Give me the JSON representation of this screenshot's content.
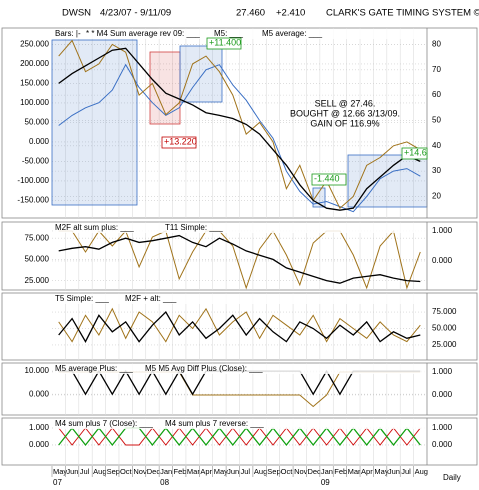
{
  "header": {
    "symbol": "DWSN",
    "range": "4/23/07 - 9/11/09",
    "last": "27.460",
    "change": "+2.410",
    "system": "CLARK'S GATE TIMING SYSTEM ©",
    "frequency": "Daily"
  },
  "chart_data": [
    {
      "type": "line",
      "grid": true,
      "legend_labels": [
        "Bars: |-",
        "* * M4 Sum average rev 09: ___",
        "M5: ___",
        "M5 average: ___"
      ],
      "annotations": [
        {
          "text": "+11.400",
          "color": "#1a9a1a"
        },
        {
          "text": "+13.220",
          "color": "#c00000"
        },
        {
          "text": "-1.440",
          "color": "#1a9a1a"
        },
        {
          "text": "+14.6",
          "color": "#1a9a1a"
        }
      ],
      "note": [
        "SELL @ 27.46.",
        "BOUGHT @ 12.66 3/13/09.",
        "GAIN OF 116.9%"
      ],
      "ylim": [
        -195,
        292
      ],
      "yticks": [
        {
          "value": 250,
          "label": "250.000"
        },
        {
          "value": 200,
          "label": "200.000"
        },
        {
          "value": 150,
          "label": "150.000"
        },
        {
          "value": 100,
          "label": "100.000"
        },
        {
          "value": 50,
          "label": "50.000"
        },
        {
          "value": 0,
          "label": "0.000"
        },
        {
          "value": -50,
          "label": "-50.000"
        },
        {
          "value": -100,
          "label": "-100.000"
        },
        {
          "value": -150,
          "label": "-150.000"
        }
      ],
      "y2lim": [
        11.5,
        86.5
      ],
      "y2ticks": [
        80,
        70,
        60,
        50,
        40,
        30,
        20
      ],
      "series": [
        {
          "color": "#3a6fc4",
          "axis": "y2",
          "values": [
            48,
            52,
            55,
            57,
            62,
            72,
            63,
            57,
            52,
            55,
            63,
            70,
            72,
            64,
            58,
            50,
            43,
            30,
            22,
            17,
            18,
            16,
            14,
            20,
            27,
            30,
            31,
            28
          ]
        },
        {
          "color": "#a0731a",
          "values": [
            220,
            260,
            180,
            200,
            250,
            230,
            120,
            150,
            70,
            100,
            200,
            220,
            180,
            120,
            20,
            50,
            0,
            -120,
            -60,
            -150,
            -100,
            -170,
            -140,
            -60,
            -40,
            -10,
            0,
            -20
          ]
        },
        {
          "color": "#000000",
          "values": [
            150,
            175,
            195,
            215,
            235,
            240,
            200,
            160,
            125,
            110,
            95,
            75,
            68,
            60,
            45,
            20,
            -20,
            -60,
            -110,
            -150,
            -170,
            -175,
            -170,
            -120,
            -90,
            -60,
            -35,
            -50
          ]
        }
      ]
    },
    {
      "type": "line",
      "grid": true,
      "legend_labels": [
        "M2F alt sum plus: ___",
        "T11 Simple: ___"
      ],
      "ylim": [
        14,
        94
      ],
      "yticks": [
        {
          "value": 75,
          "label": "75.000"
        },
        {
          "value": 50,
          "label": "50.000"
        },
        {
          "value": 25,
          "label": "25.000"
        }
      ],
      "y2lim": [
        -0.97,
        1.3
      ],
      "y2ticks": [
        {
          "value": 1,
          "label": "1.000"
        },
        {
          "value": 0,
          "label": "0.000"
        }
      ],
      "series": [
        {
          "color": "#a0731a",
          "axis": "y2",
          "values": [
            1,
            1,
            0.3,
            1,
            0.5,
            1,
            -0.2,
            0.8,
            1,
            -0.6,
            0.3,
            1,
            1,
            0.5,
            -0.9,
            0.4,
            1,
            0.2,
            -0.8,
            0.6,
            1,
            1,
            0.2,
            -0.9,
            0.5,
            1,
            -0.9,
            0.3
          ]
        },
        {
          "color": "#000000",
          "values": [
            60,
            63,
            65,
            62,
            70,
            75,
            70,
            72,
            75,
            78,
            70,
            65,
            75,
            68,
            60,
            55,
            50,
            40,
            35,
            30,
            25,
            22,
            28,
            30,
            32,
            28,
            25,
            24
          ]
        }
      ]
    },
    {
      "type": "line",
      "grid": true,
      "legend_labels": [
        "T5 Simple: ___",
        "M2F + alt: ___"
      ],
      "y2lim": [
        2,
        104
      ],
      "y2ticks": [
        {
          "value": 75,
          "label": "75.000"
        },
        {
          "value": 50,
          "label": "50.000"
        },
        {
          "value": 25,
          "label": "25.000"
        }
      ],
      "series": [
        {
          "color": "#a0731a",
          "axis": "y2",
          "values": [
            60,
            30,
            70,
            40,
            80,
            35,
            75,
            60,
            30,
            70,
            50,
            80,
            40,
            60,
            75,
            35,
            70,
            55,
            40,
            70,
            30,
            65,
            50,
            35,
            60,
            40,
            30,
            55
          ]
        },
        {
          "color": "#000000",
          "axis": "y2",
          "values": [
            40,
            65,
            30,
            70,
            45,
            60,
            30,
            55,
            75,
            40,
            60,
            35,
            50,
            70,
            40,
            65,
            45,
            30,
            60,
            50,
            35,
            55,
            40,
            60,
            30,
            45,
            35,
            40
          ]
        }
      ]
    },
    {
      "type": "line",
      "grid": true,
      "legend_labels": [
        "M5 average Plus: ___",
        "M5 M5 Avg Diff Plus (Close): ___"
      ],
      "ylim": [
        -9,
        13.5
      ],
      "yticks": [
        {
          "value": 10,
          "label": "10.000"
        },
        {
          "value": 0,
          "label": "0.000"
        }
      ],
      "y2lim": [
        -0.87,
        1.39
      ],
      "y2ticks": [
        {
          "value": 1,
          "label": "1.000"
        },
        {
          "value": 0,
          "label": "0.000"
        }
      ],
      "series": [
        {
          "color": "#a0731a",
          "axis": "y2",
          "values": [
            1,
            1,
            1,
            1,
            1,
            1,
            1,
            1,
            1,
            1,
            0,
            0,
            0,
            0,
            0,
            0,
            0,
            0,
            0,
            -0.5,
            0,
            1,
            1,
            1,
            1,
            1,
            1,
            1
          ]
        },
        {
          "color": "#000000",
          "values": [
            10,
            10,
            0,
            10,
            0,
            10,
            0,
            10,
            0,
            10,
            0,
            10,
            10,
            10,
            10,
            10,
            10,
            10,
            10,
            0,
            10,
            0,
            10,
            10,
            10,
            10,
            10,
            10
          ]
        }
      ]
    },
    {
      "type": "line",
      "grid": true,
      "legend_labels": [
        "M4 sum plus 7 (Close): ___",
        "M4 sum plus 7 reverse: ___"
      ],
      "ylim": [
        -1.18,
        1.59
      ],
      "yticks": [
        {
          "value": 1,
          "label": "1.000"
        },
        {
          "value": 0,
          "label": "0.000"
        }
      ],
      "y2lim": [
        -1.18,
        1.59
      ],
      "y2ticks": [
        {
          "value": 1,
          "label": "1.000"
        },
        {
          "value": 0,
          "label": "0.000"
        }
      ],
      "categories": [
        "May",
        "Jun",
        "Jul",
        "Aug",
        "Sep",
        "Oct",
        "Nov",
        "Dec",
        "Jan",
        "Feb",
        "Mar",
        "Apr",
        "May",
        "Jun",
        "Jul",
        "Aug",
        "Sep",
        "Oct",
        "Nov",
        "Dec",
        "Jan",
        "Feb",
        "Mar",
        "Apr",
        "May",
        "Jun",
        "Jul",
        "Aug"
      ],
      "year_labels": [
        "07",
        null,
        null,
        null,
        null,
        null,
        null,
        null,
        "08",
        null,
        null,
        null,
        null,
        null,
        null,
        null,
        null,
        null,
        null,
        null,
        "09",
        null,
        null,
        null,
        null,
        null,
        null,
        null
      ],
      "series": [
        {
          "color": "#d01010",
          "values": [
            1,
            0,
            1,
            0,
            1,
            0,
            0,
            1,
            0,
            1,
            0,
            1,
            0,
            1,
            0,
            1,
            0,
            1,
            0,
            1,
            0,
            1,
            0,
            1,
            0,
            1,
            0,
            1
          ]
        },
        {
          "color": "#10a010",
          "values": [
            0,
            1,
            0,
            1,
            0,
            1,
            1,
            0,
            1,
            0,
            1,
            0,
            1,
            0,
            1,
            0,
            1,
            0,
            1,
            0,
            1,
            0,
            1,
            0,
            1,
            0,
            1,
            0
          ]
        }
      ]
    }
  ]
}
